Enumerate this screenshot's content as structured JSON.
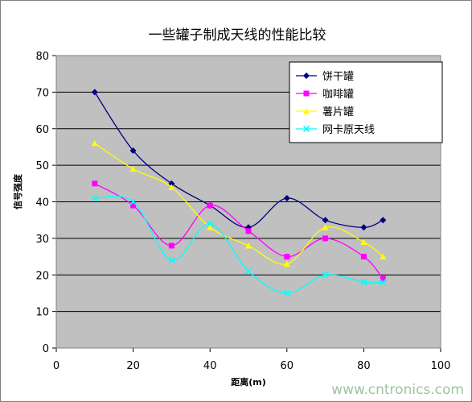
{
  "chart_data": {
    "type": "line",
    "title": "一些罐子制成天线的性能比较",
    "xlabel": "距离(m)",
    "ylabel": "信号强度",
    "xlim": [
      0,
      100
    ],
    "ylim": [
      0,
      80
    ],
    "xticks": [
      "0",
      "20",
      "40",
      "60",
      "80",
      "100"
    ],
    "yticks": [
      "0",
      "10",
      "20",
      "30",
      "40",
      "50",
      "60",
      "70",
      "80"
    ],
    "grid": "horizontal",
    "legend_position": "top-right",
    "plot_background": "#c0c0c0",
    "series": [
      {
        "name": "饼干罐",
        "color": "#000080",
        "marker": "diamond",
        "x": [
          10,
          20,
          30,
          40,
          50,
          60,
          70,
          80,
          85
        ],
        "y": [
          70,
          54,
          45,
          39,
          33,
          41,
          35,
          33,
          35
        ]
      },
      {
        "name": "咖啡罐",
        "color": "#ff00ff",
        "marker": "square",
        "x": [
          10,
          20,
          30,
          40,
          50,
          60,
          70,
          80,
          85
        ],
        "y": [
          45,
          39,
          28,
          39,
          32,
          25,
          30,
          25,
          19
        ]
      },
      {
        "name": "薯片罐",
        "color": "#ffff00",
        "marker": "triangle",
        "x": [
          10,
          20,
          30,
          40,
          50,
          60,
          70,
          80,
          85
        ],
        "y": [
          56,
          49,
          44,
          33,
          28,
          23,
          33,
          29,
          25
        ]
      },
      {
        "name": "网卡原天线",
        "color": "#00ffff",
        "marker": "x",
        "x": [
          10,
          20,
          30,
          40,
          50,
          60,
          70,
          80,
          85
        ],
        "y": [
          41,
          40,
          24,
          34,
          21,
          15,
          20,
          18,
          18
        ]
      }
    ]
  },
  "watermark": "www.cntronics.com"
}
